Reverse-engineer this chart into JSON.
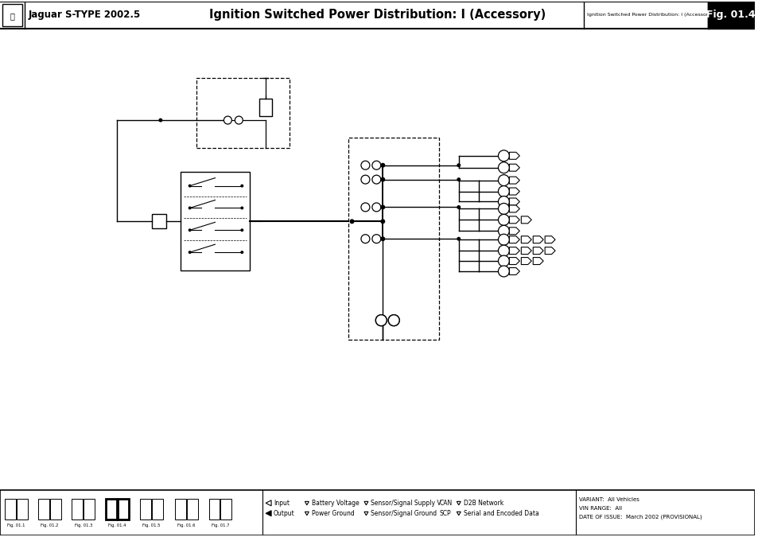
{
  "title": "Ignition Switched Power Distribution: I (Accessory)",
  "fig_label": "Fig. 01.4",
  "car_model": "Jaguar S-TYPE 2002.5",
  "footer_info": {
    "variant": "All Vehicles",
    "vin_range": "All",
    "date_of_issue": "March 2002 (PROVISIONAL)"
  },
  "thumb_labels": [
    "Fig. 01.1",
    "Fig. 01.2",
    "Fig. 01.3",
    "Fig. 01.4",
    "Fig. 01.5",
    "Fig. 01.6",
    "Fig. 01.7"
  ]
}
